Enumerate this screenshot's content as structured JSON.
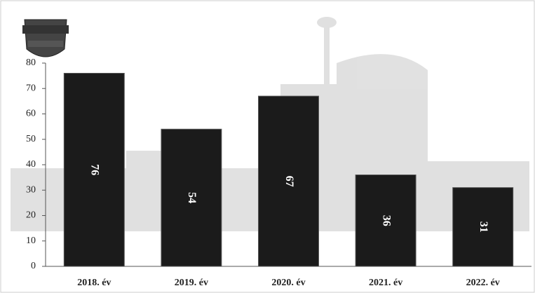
{
  "chart_data": {
    "type": "bar",
    "categories": [
      "2018. év",
      "2019. év",
      "2020. év",
      "2021. év",
      "2022. év"
    ],
    "values": [
      76,
      54,
      67,
      36,
      31
    ],
    "color": "#1b1b1b",
    "ylim": [
      0,
      80
    ],
    "yticks": [
      0,
      10,
      20,
      30,
      40,
      50,
      60,
      70,
      80
    ],
    "grid": false
  }
}
